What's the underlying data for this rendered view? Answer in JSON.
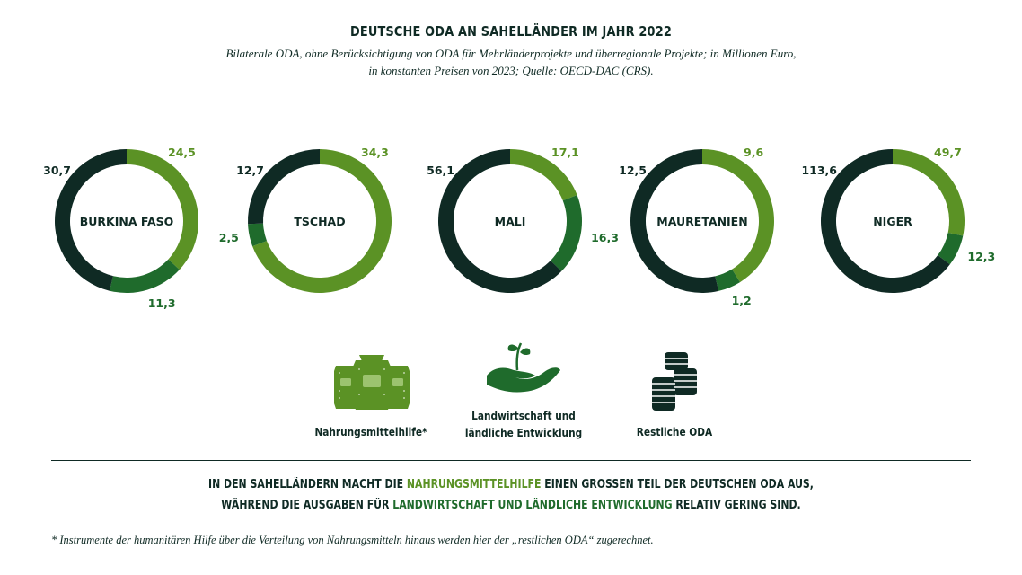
{
  "title": "DEUTSCHE ODA AN SAHELLÄNDER IM JAHR 2022",
  "subtitle_line1": "Bilaterale ODA, ohne Berücksichtigung von ODA für Mehrländerprojekte und überregionale Projekte; in Millionen Euro,",
  "subtitle_line2": "in konstanten Preisen von 2023; Quelle: OECD-DAC (CRS).",
  "colors": {
    "nahrungsmittelhilfe": "#5b9225",
    "landwirtschaft": "#1f6b2c",
    "restliche": "#0f2a24"
  },
  "chart_data": {
    "type": "pie",
    "variant": "donut",
    "unit": "Millionen Euro",
    "categories": [
      "Nahrungsmittelhilfe*",
      "Landwirtschaft und ländliche Entwicklung",
      "Restliche ODA"
    ],
    "charts": [
      {
        "country": "BURKINA FASO",
        "labels": [
          "24,5",
          "11,3",
          "30,7"
        ],
        "values": [
          24.5,
          11.3,
          30.7
        ]
      },
      {
        "country": "TSCHAD",
        "labels": [
          "34,3",
          "2,5",
          "12,7"
        ],
        "values": [
          34.3,
          2.5,
          12.7
        ]
      },
      {
        "country": "MALI",
        "labels": [
          "17,1",
          "16,3",
          "56,1"
        ],
        "values": [
          17.1,
          16.3,
          56.1
        ]
      },
      {
        "country": "MAURETANIEN",
        "labels": [
          "9,6",
          "1,2",
          "12,5"
        ],
        "values": [
          9.6,
          1.2,
          12.5
        ]
      },
      {
        "country": "NIGER",
        "labels": [
          "49,7",
          "12,3",
          "113,6"
        ],
        "values": [
          49.7,
          12.3,
          113.6
        ]
      }
    ]
  },
  "legend": {
    "food": {
      "icon": "grain-sacks-icon",
      "label": "Nahrungsmittelhilfe*"
    },
    "agri": {
      "icon": "hand-seedling-icon",
      "line1": "Landwirtschaft und",
      "line2": "ländliche Entwicklung"
    },
    "rest": {
      "icon": "coin-stacks-icon",
      "label": "Restliche ODA"
    }
  },
  "message": {
    "l1_a": "IN DEN SAHELLÄNDERN MACHT DIE ",
    "l1_b": "NAHRUNGSMITTELHILFE",
    "l1_c": " EINEN GROSSEN TEIL DER DEUTSCHEN ODA AUS,",
    "l2_a": "WÄHREND DIE AUSGABEN FÜR ",
    "l2_b": "LANDWIRTSCHAFT UND LÄNDLICHE ENTWICKLUNG",
    "l2_c": " RELATIV GERING SIND."
  },
  "footnote": "* Instrumente der humanitären Hilfe über die Verteilung von Nahrungsmitteln hinaus werden hier der „restlichen ODA“ zugerechnet."
}
